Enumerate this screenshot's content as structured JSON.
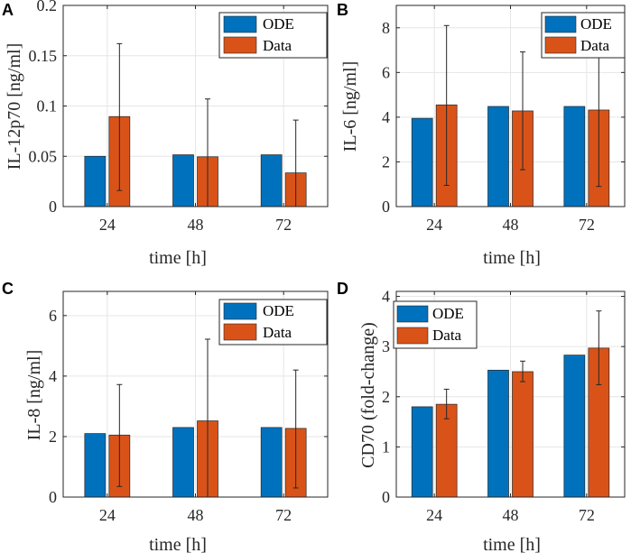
{
  "figure": {
    "background": "#ffffff"
  },
  "colors": {
    "ode": "#0072BD",
    "data": "#D95319",
    "grid": "#e6e6e6",
    "axis": "#262626"
  },
  "chart_data": [
    {
      "panel": "A",
      "type": "bar",
      "categories": [
        "24",
        "48",
        "72"
      ],
      "series": [
        {
          "name": "ODE",
          "values": [
            0.05,
            0.0515,
            0.0515
          ]
        },
        {
          "name": "Data",
          "values": [
            0.0895,
            0.0495,
            0.0335
          ],
          "error_low": [
            0.016,
            0.0,
            0.0
          ],
          "error_high": [
            0.162,
            0.107,
            0.086
          ]
        }
      ],
      "xlabel": "time [h]",
      "ylabel": "IL-12p70 [ng/ml]",
      "ylim": [
        0,
        0.2
      ],
      "yticks": [
        0,
        0.05,
        0.1,
        0.15,
        0.2
      ],
      "ytick_labels": [
        "0",
        "0.05",
        "0.1",
        "0.15",
        "0.2"
      ],
      "grid": true,
      "legend": "top-right"
    },
    {
      "panel": "B",
      "type": "bar",
      "categories": [
        "24",
        "48",
        "72"
      ],
      "series": [
        {
          "name": "ODE",
          "values": [
            3.95,
            4.48,
            4.48
          ]
        },
        {
          "name": "Data",
          "values": [
            4.55,
            4.28,
            4.32
          ],
          "error_low": [
            0.95,
            1.65,
            0.9
          ],
          "error_high": [
            8.1,
            6.92,
            7.7
          ]
        }
      ],
      "xlabel": "time [h]",
      "ylabel": "IL-6 [ng/ml]",
      "ylim": [
        0,
        9
      ],
      "yticks": [
        0,
        2,
        4,
        6,
        8
      ],
      "ytick_labels": [
        "0",
        "2",
        "4",
        "6",
        "8"
      ],
      "grid": true,
      "legend": "top-right"
    },
    {
      "panel": "C",
      "type": "bar",
      "categories": [
        "24",
        "48",
        "72"
      ],
      "series": [
        {
          "name": "ODE",
          "values": [
            2.1,
            2.3,
            2.3
          ]
        },
        {
          "name": "Data",
          "values": [
            2.05,
            2.52,
            2.27
          ],
          "error_low": [
            0.35,
            0.0,
            0.3
          ],
          "error_high": [
            3.72,
            5.22,
            4.2
          ]
        }
      ],
      "xlabel": "time [h]",
      "ylabel": "IL-8 [ng/ml]",
      "ylim": [
        0,
        6.8
      ],
      "yticks": [
        0,
        2,
        4,
        6
      ],
      "ytick_labels": [
        "0",
        "2",
        "4",
        "6"
      ],
      "grid": true,
      "legend": "top-right"
    },
    {
      "panel": "D",
      "type": "bar",
      "categories": [
        "24",
        "48",
        "72"
      ],
      "series": [
        {
          "name": "ODE",
          "values": [
            1.8,
            2.53,
            2.83
          ]
        },
        {
          "name": "Data",
          "values": [
            1.85,
            2.5,
            2.97
          ],
          "error_low": [
            1.56,
            2.3,
            2.24
          ],
          "error_high": [
            2.15,
            2.71,
            3.71
          ]
        }
      ],
      "xlabel": "time [h]",
      "ylabel": "CD70 (fold-change)",
      "ylim": [
        0,
        4.1
      ],
      "yticks": [
        0,
        1,
        2,
        3,
        4
      ],
      "ytick_labels": [
        "0",
        "1",
        "2",
        "3",
        "4"
      ],
      "grid": true,
      "legend": "top-left"
    }
  ]
}
